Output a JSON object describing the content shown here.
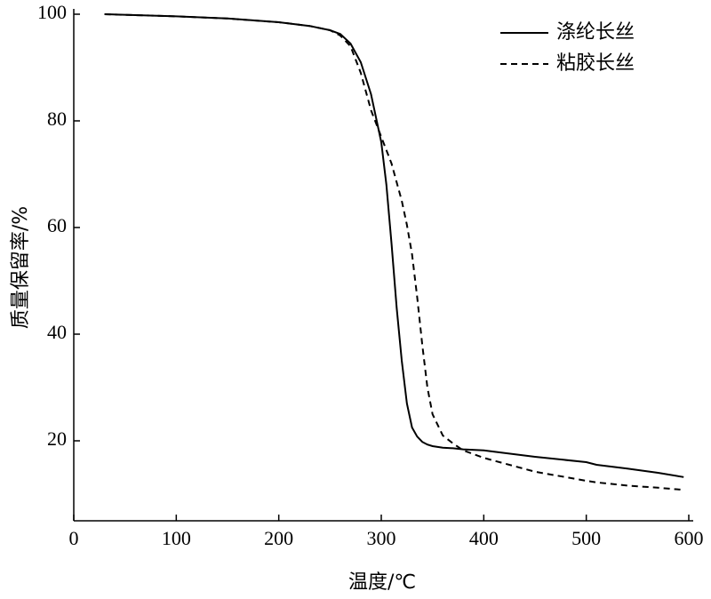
{
  "chart_data": {
    "type": "line",
    "xlabel": "温度/℃",
    "ylabel": "质量保留率/%",
    "x": [
      30,
      100,
      150,
      200,
      230,
      250,
      260,
      270,
      280,
      290,
      300,
      305,
      310,
      315,
      320,
      325,
      330,
      335,
      340,
      345,
      350,
      360,
      370,
      380,
      400,
      450,
      500,
      510,
      540,
      570,
      595
    ],
    "series": [
      {
        "name": "涤纶长丝",
        "color": "#000000",
        "style": "solid",
        "values": [
          100,
          99.6,
          99.2,
          98.5,
          97.8,
          97,
          96.3,
          94.5,
          91,
          85,
          76,
          68,
          57,
          45,
          35,
          27,
          22.5,
          20.8,
          19.8,
          19.3,
          19,
          18.7,
          18.6,
          18.4,
          18.2,
          17,
          16,
          15.5,
          14.8,
          14,
          13.2
        ]
      },
      {
        "name": "粘胶长丝",
        "color": "#000000",
        "style": "dashed",
        "values": [
          100,
          99.6,
          99.2,
          98.5,
          97.8,
          97,
          96,
          94,
          89,
          82,
          77,
          74.5,
          72,
          68.5,
          65,
          60.5,
          55,
          47,
          38,
          30,
          25,
          21,
          19.5,
          18.2,
          16.8,
          14.2,
          12.5,
          12.2,
          11.6,
          11.2,
          10.8
        ]
      }
    ],
    "xlim": [
      0,
      600
    ],
    "xticks": [
      0,
      100,
      200,
      300,
      400,
      500,
      600
    ],
    "ylim": [
      5,
      100
    ],
    "yticks": [
      20,
      40,
      60,
      80,
      100
    ],
    "legend": "upper right",
    "grid": false
  }
}
